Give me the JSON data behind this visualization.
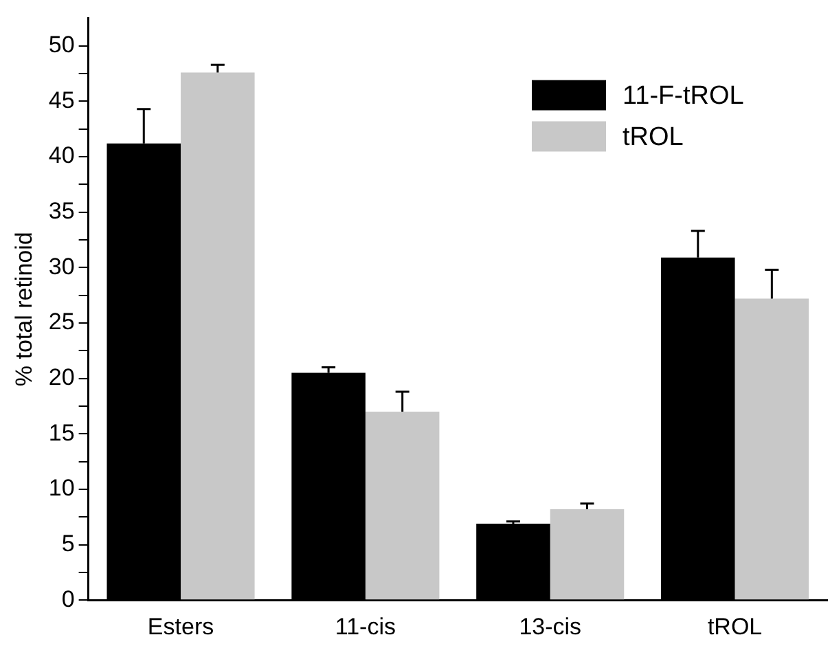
{
  "chart_data": {
    "type": "bar",
    "ylabel": "% total retinoid",
    "categories": [
      "Esters",
      "11-cis",
      "13-cis",
      "tROL"
    ],
    "series": [
      {
        "name": "11-F-tROL",
        "color": "#000000",
        "values": [
          41.2,
          20.5,
          6.9,
          30.9
        ],
        "errors": [
          [
            41.2,
            44.3
          ],
          [
            20.5,
            21.0
          ],
          [
            6.9,
            7.1
          ],
          [
            30.9,
            33.3
          ]
        ]
      },
      {
        "name": "tROL",
        "color": "#c8c8c8",
        "values": [
          47.6,
          17.0,
          8.2,
          27.2
        ],
        "errors": [
          [
            47.6,
            48.3
          ],
          [
            17.0,
            18.8
          ],
          [
            8.2,
            8.7
          ],
          [
            27.2,
            29.8
          ]
        ]
      }
    ],
    "ylim": [
      0,
      52.5
    ],
    "yticks": [
      0,
      {
        "value": 2.5,
        "label": null
      },
      5,
      {
        "value": 7.5,
        "label": null
      },
      10,
      {
        "value": 12.5,
        "label": null
      },
      15,
      {
        "value": 17.5,
        "label": null
      },
      20,
      {
        "value": 22.5,
        "label": null
      },
      25,
      {
        "value": 27.5,
        "label": null
      },
      30,
      {
        "value": 32.5,
        "label": null
      },
      35,
      {
        "value": 37.5,
        "label": null
      },
      40,
      {
        "value": 42.5,
        "label": null
      },
      45,
      {
        "value": 47.5,
        "label": null
      },
      50
    ],
    "grid": false,
    "legend": "top right"
  }
}
